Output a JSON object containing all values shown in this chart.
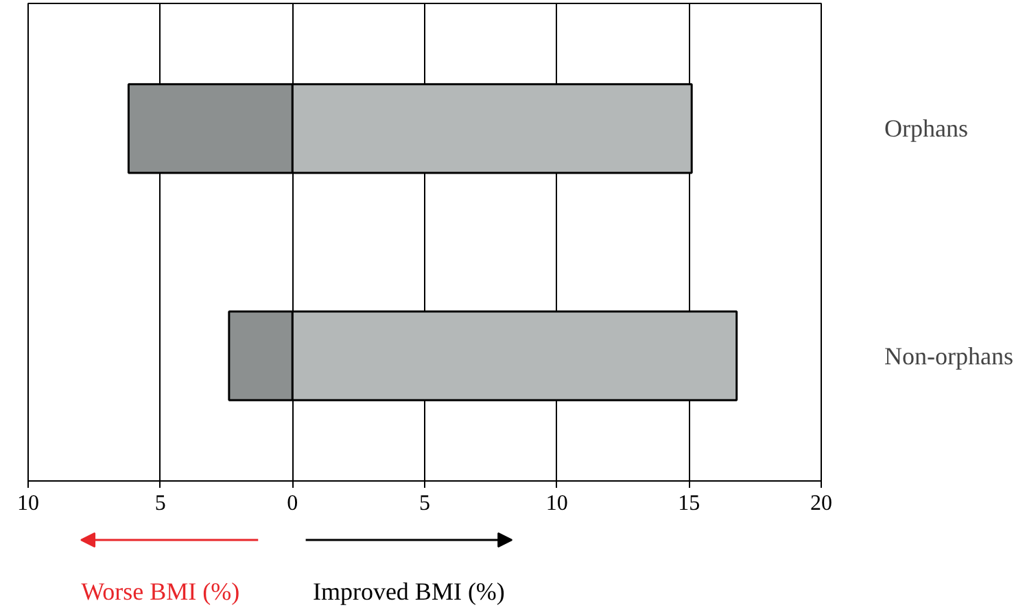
{
  "chart_data": {
    "type": "bar",
    "orientation": "horizontal",
    "stacked": true,
    "categories": [
      "Orphans",
      "Non-orphans"
    ],
    "series": [
      {
        "color": "#8c9090",
        "values": [
          -6.2,
          -2.4
        ]
      },
      {
        "color": "#b4b8b8",
        "values": [
          15.1,
          16.8
        ]
      }
    ],
    "xlim": [
      -10,
      20
    ],
    "xticks": [
      {
        "value": -10,
        "label": "10"
      },
      {
        "value": -5,
        "label": "5"
      },
      0,
      5,
      10,
      15,
      20
    ],
    "grid": "x",
    "annotations": [
      "Worse BMI (%)",
      "Improved BMI (%)"
    ]
  }
}
